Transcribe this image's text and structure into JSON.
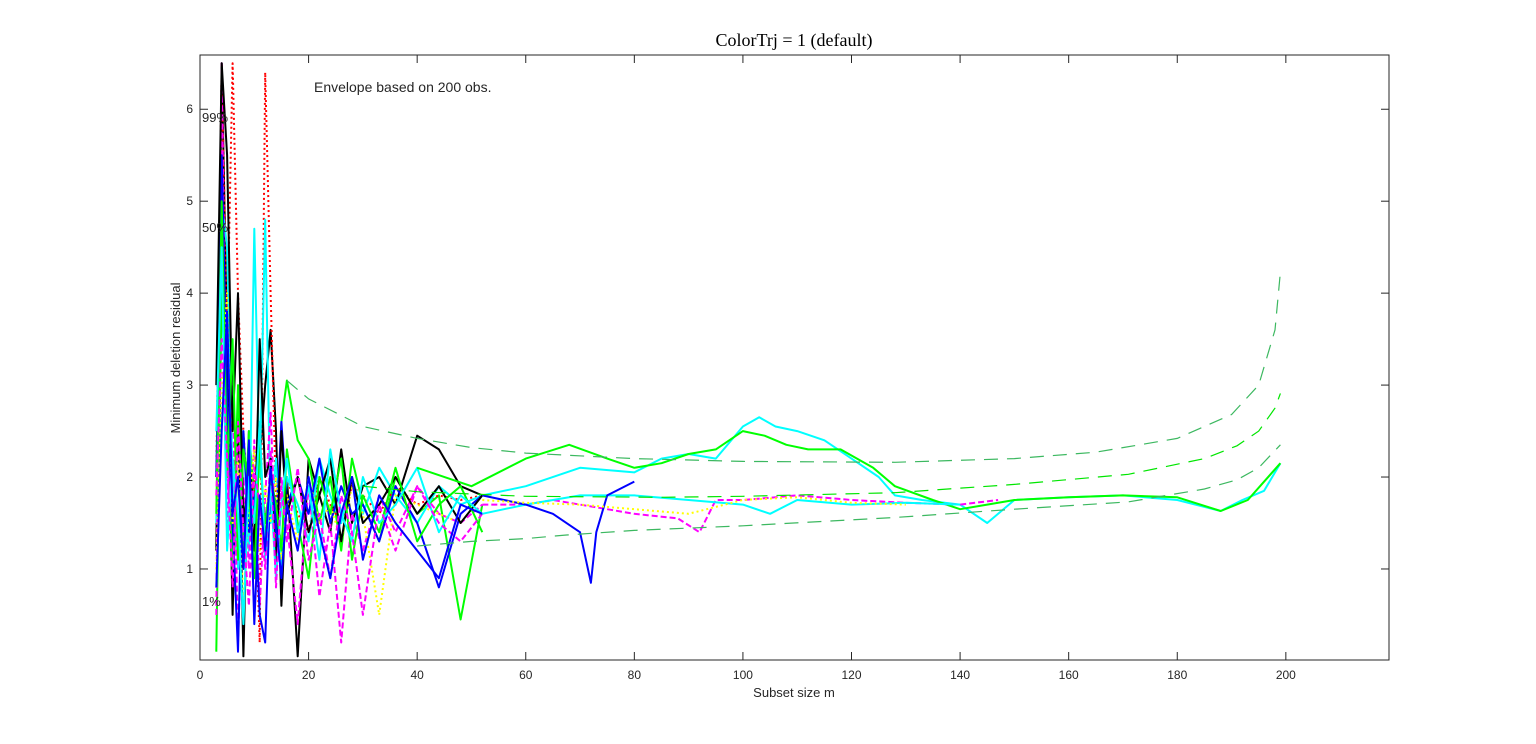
{
  "chart_data": {
    "type": "line",
    "title": "ColorTrj = 1 (default)",
    "xlabel": "Subset size m",
    "ylabel": "Minimum deletion residual",
    "xlim": [
      0,
      219
    ],
    "ylim": [
      0.01,
      6.59
    ],
    "xticks": [
      0,
      20,
      40,
      60,
      80,
      100,
      120,
      140,
      160,
      180,
      200
    ],
    "yticks": [
      1,
      2,
      3,
      4,
      5,
      6
    ],
    "grid": false,
    "box": true,
    "annotation": "Envelope based on 200 obs.",
    "envelopes": [
      {
        "label": "99%",
        "color": "#3cb860",
        "x": [
          16,
          20,
          30,
          40,
          50,
          60,
          80,
          100,
          128,
          150,
          165,
          180,
          190,
          195,
          198,
          199
        ],
        "y": [
          3.05,
          2.85,
          2.55,
          2.42,
          2.32,
          2.26,
          2.2,
          2.17,
          2.16,
          2.2,
          2.27,
          2.42,
          2.68,
          3.0,
          3.6,
          4.23
        ]
      },
      {
        "label": "50%",
        "color": "#00e600",
        "x": [
          30,
          40,
          60,
          85,
          100,
          128,
          150,
          171,
          185,
          191,
          195,
          198,
          199
        ],
        "y": [
          1.9,
          1.84,
          1.79,
          1.78,
          1.79,
          1.83,
          1.92,
          2.03,
          2.2,
          2.34,
          2.5,
          2.75,
          2.91
        ]
      },
      {
        "label": "1%",
        "color": "#3cb860",
        "x": [
          40,
          50,
          60,
          67.5,
          80,
          100,
          128,
          150,
          171,
          185,
          191,
          195,
          199
        ],
        "y": [
          1.25,
          1.3,
          1.33,
          1.37,
          1.42,
          1.47,
          1.56,
          1.65,
          1.73,
          1.87,
          1.97,
          2.1,
          2.35
        ]
      }
    ],
    "early_x": [
      3,
      4,
      5,
      6,
      7,
      8,
      9,
      10,
      11,
      12,
      13,
      14,
      15,
      16,
      18,
      20,
      22,
      24,
      26,
      28,
      30,
      33,
      36,
      40,
      44,
      48,
      52
    ],
    "trajectories": [
      {
        "color": "#000000",
        "style": "solid",
        "y": [
          1.2,
          6.5,
          3.5,
          0.5,
          2.8,
          0.05,
          2.5,
          1.5,
          2.2,
          3.0,
          3.6,
          2.5,
          0.6,
          2.0,
          0.05,
          2.2,
          1.8,
          1.4,
          2.3,
          1.5,
          1.9,
          2.0,
          1.7,
          2.45,
          2.3,
          1.9,
          1.8
        ]
      },
      {
        "color": "#00ff00",
        "style": "solid",
        "y": [
          0.1,
          4.0,
          2.5,
          1.0,
          3.0,
          1.2,
          2.5,
          1.8,
          2.2,
          1.5,
          2.0,
          1.3,
          2.6,
          3.05,
          2.4,
          2.2,
          1.5,
          2.0,
          1.2,
          2.2,
          1.7,
          1.3,
          2.0,
          1.6,
          1.8,
          0.45,
          1.7
        ]
      },
      {
        "color": "#ff0000",
        "style": "dotted",
        "y": [
          2.0,
          6.5,
          3.5,
          6.5,
          4.0,
          2.5,
          1.5,
          2.0,
          0.2,
          6.4,
          4.0,
          1.8,
          1.2,
          2.0,
          1.6,
          1.4,
          2.0,
          1.7,
          1.5,
          1.9,
          1.8,
          1.6,
          1.9,
          1.7,
          1.8,
          1.75,
          1.8
        ]
      },
      {
        "color": "#00ffff",
        "style": "solid",
        "y": [
          1.5,
          5.0,
          4.5,
          2.0,
          1.0,
          2.5,
          1.2,
          4.7,
          2.0,
          4.8,
          1.5,
          2.2,
          1.0,
          2.0,
          1.7,
          1.3,
          2.2,
          1.8,
          1.5,
          2.0,
          1.6,
          2.1,
          1.8,
          1.5,
          1.9,
          1.7,
          1.8
        ]
      },
      {
        "color": "#ff00ff",
        "style": "dashed",
        "y": [
          0.5,
          6.5,
          1.5,
          3.0,
          0.2,
          2.0,
          1.0,
          2.4,
          0.6,
          1.8,
          2.7,
          1.2,
          2.0,
          1.5,
          0.4,
          1.9,
          0.7,
          1.5,
          0.2,
          1.6,
          1.2,
          1.8,
          1.4,
          1.9,
          1.6,
          1.5,
          1.7
        ]
      },
      {
        "color": "#0000ff",
        "style": "solid",
        "y": [
          2.0,
          5.5,
          2.8,
          1.5,
          0.1,
          2.5,
          1.4,
          1.8,
          0.5,
          0.2,
          2.0,
          1.4,
          2.6,
          1.7,
          2.0,
          1.6,
          2.2,
          1.5,
          1.9,
          1.6,
          1.7,
          1.3,
          1.9,
          1.5,
          0.8,
          1.6,
          1.8
        ]
      },
      {
        "color": "#ffff00",
        "style": "dotted",
        "y": [
          1.0,
          3.0,
          4.0,
          1.5,
          2.2,
          0.6,
          1.7,
          2.3,
          1.2,
          1.9,
          1.5,
          2.0,
          1.1,
          1.8,
          1.3,
          2.0,
          1.5,
          1.7,
          1.3,
          1.9,
          1.6,
          0.5,
          1.8,
          1.7,
          1.6,
          1.5,
          1.8
        ]
      },
      {
        "color": "#000000",
        "style": "solid",
        "y": [
          3.0,
          6.5,
          5.5,
          2.5,
          4.0,
          1.5,
          2.0,
          1.2,
          3.5,
          2.0,
          2.2,
          1.0,
          2.5,
          1.6,
          2.0,
          1.4,
          1.8,
          2.2,
          1.3,
          2.0,
          1.5,
          1.7,
          2.0,
          1.6,
          1.9,
          1.5,
          1.8
        ]
      },
      {
        "color": "#00ff00",
        "style": "solid",
        "y": [
          1.6,
          5.0,
          2.0,
          3.5,
          1.1,
          2.3,
          1.9,
          0.9,
          2.4,
          1.3,
          2.0,
          1.7,
          1.2,
          2.3,
          1.5,
          0.9,
          2.0,
          1.6,
          2.2,
          1.1,
          1.8,
          1.4,
          2.1,
          1.3,
          1.7,
          1.9,
          1.4
        ]
      },
      {
        "color": "#00ffff",
        "style": "solid",
        "y": [
          2.5,
          4.5,
          1.2,
          2.2,
          1.6,
          0.4,
          2.0,
          1.5,
          2.6,
          1.1,
          1.9,
          0.9,
          1.7,
          2.2,
          1.4,
          1.9,
          1.1,
          2.3,
          1.6,
          1.3,
          2.0,
          1.5,
          1.7,
          2.1,
          1.4,
          1.8,
          1.6
        ]
      },
      {
        "color": "#ff00ff",
        "style": "dashed",
        "y": [
          1.8,
          3.5,
          2.2,
          0.8,
          2.6,
          1.4,
          0.6,
          2.1,
          1.7,
          1.0,
          2.3,
          0.8,
          1.9,
          1.3,
          2.1,
          1.1,
          1.6,
          0.9,
          1.8,
          1.4,
          0.5,
          1.7,
          1.2,
          1.9,
          1.5,
          1.3,
          1.6
        ]
      },
      {
        "color": "#0000ff",
        "style": "solid",
        "y": [
          0.8,
          2.5,
          3.8,
          1.6,
          2.0,
          1.0,
          2.4,
          0.4,
          1.8,
          1.2,
          2.1,
          1.5,
          0.9,
          1.7,
          1.2,
          2.0,
          1.4,
          0.9,
          1.6,
          2.0,
          1.1,
          1.8,
          1.5,
          1.2,
          0.9,
          1.7,
          1.6
        ]
      }
    ],
    "long_trajectories": [
      {
        "color": "#00ffff",
        "style": "solid",
        "x": [
          52,
          60,
          70,
          80,
          85,
          90,
          95,
          100,
          103,
          106,
          110,
          115,
          120,
          125,
          128,
          133,
          140,
          145,
          150,
          160,
          170,
          180,
          188,
          192,
          196,
          199
        ],
        "y": [
          1.8,
          1.9,
          2.1,
          2.05,
          2.2,
          2.25,
          2.2,
          2.55,
          2.65,
          2.55,
          2.5,
          2.4,
          2.2,
          2.0,
          1.8,
          1.75,
          1.7,
          1.5,
          1.75,
          1.78,
          1.8,
          1.75,
          1.63,
          1.75,
          1.85,
          2.15
        ]
      },
      {
        "color": "#00ff00",
        "style": "solid",
        "x": [
          40,
          50,
          60,
          68,
          75,
          80,
          85,
          90,
          95,
          100,
          104,
          108,
          112,
          118,
          124,
          128,
          135,
          140,
          145,
          150,
          160,
          170,
          180,
          188,
          193,
          199
        ],
        "y": [
          2.1,
          1.9,
          2.2,
          2.35,
          2.2,
          2.1,
          2.15,
          2.25,
          2.3,
          2.5,
          2.45,
          2.35,
          2.3,
          2.3,
          2.1,
          1.9,
          1.75,
          1.65,
          1.7,
          1.75,
          1.78,
          1.8,
          1.78,
          1.63,
          1.75,
          2.15
        ]
      },
      {
        "color": "#ff00ff",
        "style": "dashed",
        "x": [
          52,
          60,
          65,
          70,
          80,
          88,
          92,
          95,
          100,
          110,
          120,
          130,
          140,
          147
        ],
        "y": [
          1.7,
          1.7,
          1.75,
          1.7,
          1.6,
          1.55,
          1.4,
          1.75,
          1.75,
          1.8,
          1.75,
          1.72,
          1.7,
          1.75
        ]
      },
      {
        "color": "#00ffff",
        "style": "solid",
        "x": [
          52,
          60,
          70,
          80,
          90,
          100,
          105,
          110,
          120,
          130,
          140
        ],
        "y": [
          1.6,
          1.7,
          1.8,
          1.8,
          1.75,
          1.7,
          1.6,
          1.75,
          1.7,
          1.72,
          1.7
        ]
      },
      {
        "color": "#0000ff",
        "style": "solid",
        "x": [
          52,
          60,
          65,
          70,
          72,
          73,
          75,
          80
        ],
        "y": [
          1.8,
          1.7,
          1.6,
          1.4,
          0.85,
          1.4,
          1.8,
          1.95
        ]
      },
      {
        "color": "#ffff00",
        "style": "dotted",
        "x": [
          52,
          60,
          70,
          80,
          90,
          100,
          110,
          120,
          130
        ],
        "y": [
          1.75,
          1.72,
          1.7,
          1.65,
          1.6,
          1.75,
          1.78,
          1.72,
          1.7
        ]
      }
    ]
  }
}
